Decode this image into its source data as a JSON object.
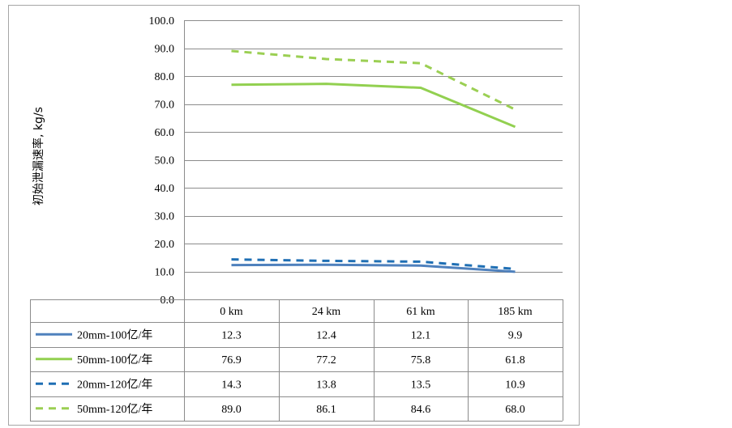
{
  "chart_data": {
    "type": "line",
    "ylabel": "初始泄漏速率, kg/s",
    "ylim": [
      0,
      100
    ],
    "yticks": [
      "0.0",
      "10.0",
      "20.0",
      "30.0",
      "40.0",
      "50.0",
      "60.0",
      "70.0",
      "80.0",
      "90.0",
      "100.0"
    ],
    "categories": [
      "0 km",
      "24 km",
      "61 km",
      "185 km"
    ],
    "grid": true,
    "legend": "data-table",
    "series": [
      {
        "name": "20mm-100亿/年",
        "values": [
          12.3,
          12.4,
          12.1,
          9.9
        ],
        "labels": [
          "12.3",
          "12.4",
          "12.1",
          "9.9"
        ],
        "color": "#4f81bd",
        "dash": false
      },
      {
        "name": "50mm-100亿/年",
        "values": [
          76.9,
          77.2,
          75.8,
          61.8
        ],
        "labels": [
          "76.9",
          "77.2",
          "75.8",
          "61.8"
        ],
        "color": "#92d050",
        "dash": false
      },
      {
        "name": "20mm-120亿/年",
        "values": [
          14.3,
          13.8,
          13.5,
          10.9
        ],
        "labels": [
          "14.3",
          "13.8",
          "13.5",
          "10.9"
        ],
        "color": "#1f6fb4",
        "dash": true
      },
      {
        "name": "50mm-120亿/年",
        "values": [
          89.0,
          86.1,
          84.6,
          68.0
        ],
        "labels": [
          "89.0",
          "86.1",
          "84.6",
          "68.0"
        ],
        "color": "#9bcf53",
        "dash": true
      }
    ]
  }
}
